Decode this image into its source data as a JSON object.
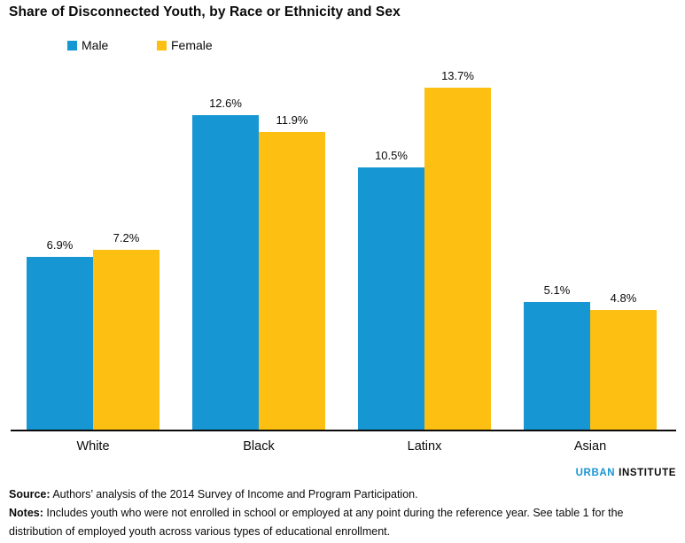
{
  "title": "Share of Disconnected Youth, by Race or Ethnicity and Sex",
  "chart_data": {
    "type": "bar",
    "title": "Share of Disconnected Youth, by Race or Ethnicity and Sex",
    "categories": [
      "White",
      "Black",
      "Latinx",
      "Asian"
    ],
    "series": [
      {
        "name": "Male",
        "color": "#1696D2",
        "values": [
          6.9,
          12.6,
          10.5,
          5.1
        ]
      },
      {
        "name": "Female",
        "color": "#FDBF11",
        "values": [
          7.2,
          11.9,
          13.7,
          4.8
        ]
      }
    ],
    "value_suffix": "%",
    "xlabel": "",
    "ylabel": "",
    "ylim": [
      0,
      14
    ],
    "grid": false,
    "y_axis_shown": false,
    "data_labels": true,
    "legend_position": "top-left"
  },
  "legend": {
    "male_label": "Male",
    "female_label": "Female"
  },
  "footer": {
    "source_label": "Source:",
    "source_text": " Authors’ analysis of the 2014 Survey of Income and Program Participation.",
    "notes_label": "Notes:",
    "notes_text": " Includes youth who were not enrolled in school or employed at any point during the reference year. See table 1 for the distribution of employed youth across various types of educational enrollment."
  },
  "logo": {
    "part1": "URBAN",
    "part2": "INSTITUTE"
  },
  "colors": {
    "male_bar": "#1696D2",
    "female_bar": "#FDBF11",
    "text": "#0A0A0A",
    "axis_line": "#0A0A0A",
    "logo_urban": "#1696D2"
  }
}
